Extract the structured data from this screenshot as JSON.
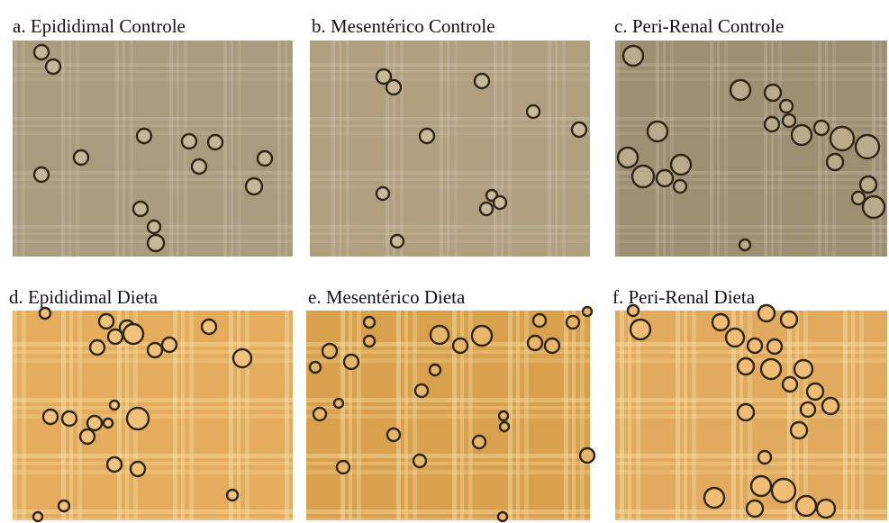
{
  "panels": [
    {
      "label": "a. Epididimal Controle"
    },
    {
      "label": "b. Mesentérico Controle"
    },
    {
      "label": "c. Peri-Renal Controle"
    },
    {
      "label": "d. Epididimal Dieta"
    },
    {
      "label": "e. Mesentérico Dieta"
    },
    {
      "label": "f. Peri-Renal Dieta"
    }
  ]
}
